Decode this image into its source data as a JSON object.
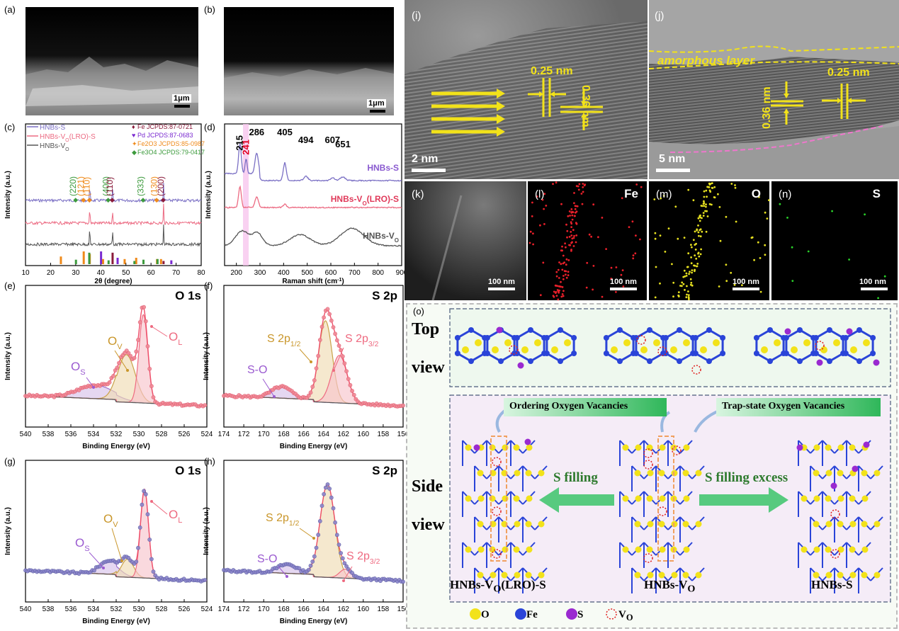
{
  "panel_labels": {
    "a": "(a)",
    "b": "(b)",
    "c": "(c)",
    "d": "(d)",
    "e": "(e)",
    "f": "(f)",
    "g": "(g)",
    "h": "(h)",
    "i": "(i)",
    "j": "(j)",
    "k": "(k)",
    "l": "(l)",
    "m": "(m)",
    "n": "(n)",
    "o": "(o)"
  },
  "sem": {
    "scale_a": "1μm",
    "scale_b": "1μm"
  },
  "tem": {
    "scale_i": "2 nm",
    "scale_j": "5 nm",
    "d1": "0.25 nm",
    "d2": "0.36 nm",
    "d3": "0.36 nm",
    "d4": "0.25 nm",
    "amorphous": "amorphous layer"
  },
  "maps": {
    "scale": "100 nm",
    "fe": "Fe",
    "o": "O",
    "s": "S",
    "colors": {
      "fe": "#e8202a",
      "o": "#e6e020",
      "s": "#2ad12a"
    }
  },
  "xps_titles": {
    "e": "O 1s",
    "f": "S 2p",
    "g": "O 1s",
    "h": "S 2p"
  },
  "peaks": {
    "os": "O",
    "os_sub": "S",
    "ov": "O",
    "ov_sub": "V",
    "ol": "O",
    "ol_sub": "L",
    "so": "S-O",
    "s2p12": "S 2p",
    "s2p12_sub": "1/2",
    "s2p32": "S 2p",
    "s2p32_sub": "3/2"
  },
  "structure": {
    "top": "Top",
    "view1": "view",
    "side": "Side",
    "view2": "view",
    "ordering": "Ordering Oxygen Vacancies",
    "trap": "Trap-state Oxygen Vacancies",
    "s_filling": "S filling",
    "s_filling_excess": "S filling excess",
    "lbl_left": "HNBs-V",
    "lbl_left_sub": "O",
    "lbl_left_tail": "(LRO)-S",
    "lbl_mid": "HNBs-V",
    "lbl_mid_sub": "O",
    "lbl_right": "HNBs-S",
    "legend": {
      "o": "O",
      "fe": "Fe",
      "s": "S",
      "vo": "V",
      "vo_sub": "O"
    },
    "colors": {
      "o": "#f2e21a",
      "fe": "#2a44d8",
      "s": "#9a2ad0",
      "vo": "#e02020"
    }
  },
  "chart_data": [
    {
      "panel": "c",
      "type": "line",
      "xlabel": "2θ (degree)",
      "ylabel": "Intensity (a.u.)",
      "xlim": [
        10,
        80
      ],
      "xticks": [
        10,
        20,
        30,
        40,
        50,
        60,
        70,
        80
      ],
      "series": [
        {
          "name": "HNBs-S",
          "color": "#7a6fc4"
        },
        {
          "name": "HNBs-V",
          "name_sub": "O",
          "name_tail": "(LRO)-S",
          "color": "#ec6a82"
        },
        {
          "name": "HNBs-V",
          "name_sub": "O",
          "color": "#555555"
        }
      ],
      "reference_legend": [
        {
          "name": "Fe JCPDS:87-0721",
          "color": "#8a1a3a",
          "marker": "♦"
        },
        {
          "name": "Pd JCPDS:87-0683",
          "color": "#7a2ad0",
          "marker": "♥"
        },
        {
          "name": "Fe2O3 JCPDS:85-0987",
          "color": "#ef8a1a",
          "marker": "✦"
        },
        {
          "name": "Fe3O4 JCPDS:79-0417",
          "color": "#3c9a3c",
          "marker": "◆"
        }
      ],
      "annotations": [
        {
          "text": "(220)",
          "color": "#3c9a3c",
          "x": 30.1
        },
        {
          "text": "(121)",
          "color": "#ef8a1a",
          "x": 33.2
        },
        {
          "text": "(110)",
          "color": "#ef8a1a",
          "x": 35.6
        },
        {
          "text": "(400)",
          "color": "#3c9a3c",
          "x": 43.1
        },
        {
          "text": "(110)",
          "color": "#8a1a3a",
          "x": 44.7
        },
        {
          "text": "(333)",
          "color": "#3c9a3c",
          "x": 57.0
        },
        {
          "text": "(130)",
          "color": "#ef8a1a",
          "x": 62.4
        },
        {
          "text": "(200)",
          "color": "#8a1a3a",
          "x": 65.0
        }
      ],
      "reference_sticks": [
        {
          "x": 24.1,
          "h": 0.6,
          "color": "#ef8a1a"
        },
        {
          "x": 33.2,
          "h": 1.0,
          "color": "#ef8a1a"
        },
        {
          "x": 35.6,
          "h": 0.8,
          "color": "#ef8a1a"
        },
        {
          "x": 40.9,
          "h": 0.4,
          "color": "#ef8a1a"
        },
        {
          "x": 49.5,
          "h": 0.4,
          "color": "#ef8a1a"
        },
        {
          "x": 54.1,
          "h": 0.5,
          "color": "#ef8a1a"
        },
        {
          "x": 62.4,
          "h": 0.4,
          "color": "#ef8a1a"
        },
        {
          "x": 64.0,
          "h": 0.4,
          "color": "#ef8a1a"
        },
        {
          "x": 30.1,
          "h": 0.35,
          "color": "#3c9a3c"
        },
        {
          "x": 35.4,
          "h": 0.9,
          "color": "#3c9a3c"
        },
        {
          "x": 43.1,
          "h": 0.3,
          "color": "#3c9a3c"
        },
        {
          "x": 53.4,
          "h": 0.25,
          "color": "#3c9a3c"
        },
        {
          "x": 57.0,
          "h": 0.35,
          "color": "#3c9a3c"
        },
        {
          "x": 62.6,
          "h": 0.4,
          "color": "#3c9a3c"
        },
        {
          "x": 44.7,
          "h": 0.9,
          "color": "#8a1a3a"
        },
        {
          "x": 65.0,
          "h": 0.25,
          "color": "#8a1a3a"
        },
        {
          "x": 40.1,
          "h": 1.0,
          "color": "#7a2ad0"
        },
        {
          "x": 46.7,
          "h": 0.5,
          "color": "#7a2ad0"
        },
        {
          "x": 68.1,
          "h": 0.3,
          "color": "#7a2ad0"
        }
      ],
      "main_peaks": [
        {
          "x": 35.6,
          "h": 1.0
        },
        {
          "x": 44.7,
          "h": 0.8
        },
        {
          "x": 65.0,
          "h": 1.2
        }
      ]
    },
    {
      "panel": "d",
      "type": "line",
      "xlabel": "Raman shift (cm",
      "xlabel_sup": "-1",
      "xlabel_tail": ")",
      "ylabel": "Intensity (a.u.)",
      "xlim": [
        150,
        900
      ],
      "xticks": [
        200,
        300,
        400,
        500,
        600,
        700,
        800,
        900
      ],
      "highlight_band": [
        228,
        252
      ],
      "peak_labels": [
        {
          "text": "215",
          "x": 215,
          "color": "#000000"
        },
        {
          "text": "241",
          "x": 241,
          "color": "#e00020"
        },
        {
          "text": "286",
          "x": 286,
          "color": "#000000"
        },
        {
          "text": "405",
          "x": 405,
          "color": "#000000"
        },
        {
          "text": "494",
          "x": 494,
          "color": "#000000"
        },
        {
          "text": "607",
          "x": 607,
          "color": "#000000"
        },
        {
          "text": "651",
          "x": 651,
          "color": "#000000"
        }
      ],
      "series": [
        {
          "name": "HNBs-S",
          "color": "#7a6fc4",
          "label_color": "#8a5ad0",
          "peaks": [
            {
              "x": 215,
              "h": 1.0,
              "w": 8
            },
            {
              "x": 241,
              "h": 0.5,
              "w": 6
            },
            {
              "x": 286,
              "h": 0.7,
              "w": 10
            },
            {
              "x": 405,
              "h": 0.6,
              "w": 9
            },
            {
              "x": 494,
              "h": 0.15,
              "w": 12
            },
            {
              "x": 607,
              "h": 0.1,
              "w": 12
            },
            {
              "x": 651,
              "h": 0.12,
              "w": 15
            }
          ]
        },
        {
          "name": "HNBs-V",
          "name_sub": "O",
          "name_tail": "(LRO)-S",
          "color": "#ec6a82",
          "label_color": "#e03a5a",
          "peaks": [
            {
              "x": 215,
              "h": 1.0,
              "w": 8
            },
            {
              "x": 286,
              "h": 0.5,
              "w": 10
            },
            {
              "x": 405,
              "h": 0.15,
              "w": 10
            }
          ]
        },
        {
          "name": "HNBs-V",
          "name_sub": "O",
          "color": "#555555",
          "label_color": "#555555",
          "peaks": [
            {
              "x": 225,
              "h": 0.6,
              "w": 40
            },
            {
              "x": 290,
              "h": 0.5,
              "w": 30
            },
            {
              "x": 470,
              "h": 0.45,
              "w": 60
            },
            {
              "x": 690,
              "h": 0.7,
              "w": 70
            }
          ]
        }
      ]
    },
    {
      "panel": "e",
      "type": "line",
      "title": "O 1s",
      "xlabel": "Binding Energy (eV)",
      "ylabel": "Intensity (a.u.)",
      "xlim": [
        540,
        524
      ],
      "xticks": [
        540,
        538,
        536,
        534,
        532,
        530,
        528,
        526,
        524
      ],
      "components": [
        {
          "name": "O",
          "sub": "S",
          "center": 533.8,
          "height": 0.12,
          "width": 2.2,
          "color": "#9a6ac8",
          "fill": "#d7c2ea"
        },
        {
          "name": "O",
          "sub": "V",
          "center": 531.1,
          "height": 0.42,
          "width": 1.1,
          "color": "#c9a24a",
          "fill": "#efdcb4"
        },
        {
          "name": "O",
          "sub": "L",
          "center": 529.6,
          "height": 0.78,
          "width": 0.55,
          "color": "#ee6a80",
          "fill": "#f8c4cc"
        }
      ]
    },
    {
      "panel": "f",
      "type": "line",
      "title": "S 2p",
      "xlabel": "Binding Energy (eV)",
      "ylabel": "Intensity (a.u.)",
      "xlim": [
        174,
        156
      ],
      "xticks": [
        174,
        172,
        170,
        168,
        166,
        164,
        162,
        160,
        158,
        156
      ],
      "components": [
        {
          "name": "S-O",
          "center": 168.2,
          "height": 0.1,
          "width": 1.4,
          "color": "#9a6ac8",
          "fill": "#d7c2ea"
        },
        {
          "name": "S 2p",
          "sub": "1/2",
          "center": 163.8,
          "height": 0.72,
          "width": 0.95,
          "color": "#c9a24a",
          "fill": "#efdcb4"
        },
        {
          "name": "S 2p",
          "sub": "3/2",
          "center": 162.4,
          "height": 0.42,
          "width": 1.1,
          "color": "#ee6a80",
          "fill": "#f8c4cc"
        }
      ]
    },
    {
      "panel": "g",
      "type": "line",
      "title": "O 1s",
      "xlabel": "Binding Energy (eV)",
      "ylabel": "Intensity (a.u.)",
      "xlim": [
        540,
        524
      ],
      "xticks": [
        540,
        538,
        536,
        534,
        532,
        530,
        528,
        526,
        524
      ],
      "components": [
        {
          "name": "O",
          "sub": "S",
          "center": 532.6,
          "height": 0.12,
          "width": 1.2,
          "color": "#9a6ac8",
          "fill": "#d7c2ea"
        },
        {
          "name": "O",
          "sub": "V",
          "center": 531.0,
          "height": 0.16,
          "width": 0.75,
          "color": "#c9a24a",
          "fill": "#efdcb4"
        },
        {
          "name": "O",
          "sub": "L",
          "center": 529.5,
          "height": 0.78,
          "width": 0.5,
          "color": "#ee6a80",
          "fill": "#f8c4cc"
        }
      ]
    },
    {
      "panel": "h",
      "type": "line",
      "title": "S 2p",
      "xlabel": "Binding Energy (eV)",
      "ylabel": "Intensity (a.u.)",
      "xlim": [
        174,
        156
      ],
      "xticks": [
        174,
        172,
        170,
        168,
        166,
        164,
        162,
        160,
        158,
        156
      ],
      "components": [
        {
          "name": "S-O",
          "center": 167.6,
          "height": 0.08,
          "width": 1.4,
          "color": "#9a6ac8",
          "fill": "#d7c2ea"
        },
        {
          "name": "S 2p",
          "sub": "1/2",
          "center": 163.6,
          "height": 0.82,
          "width": 1.05,
          "color": "#c9a24a",
          "fill": "#efdcb4"
        },
        {
          "name": "S 2p",
          "sub": "3/2",
          "center": 161.8,
          "height": 0.08,
          "width": 0.8,
          "color": "#ee6a80",
          "fill": "#f8c4cc"
        }
      ]
    }
  ]
}
